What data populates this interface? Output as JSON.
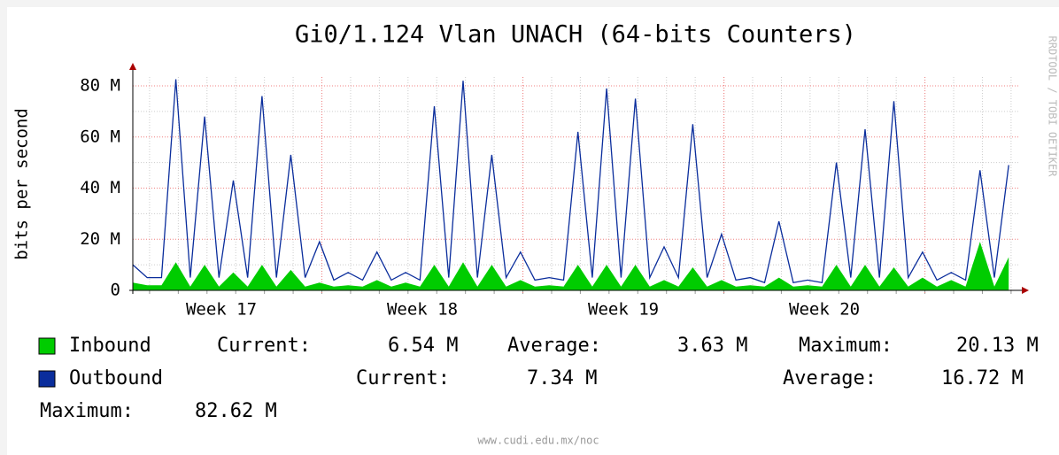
{
  "chart_data": {
    "type": "area-line",
    "title": "Gi0/1.124 Vlan UNACH (64-bits Counters)",
    "y_label": "bits per second",
    "side_label": "RRDTOOL / TOBI OETIKER",
    "footer": "www.cudi.edu.mx/noc",
    "xlim": [
      0,
      740
    ],
    "xticks": [
      {
        "value": 74,
        "label": "Week 17"
      },
      {
        "value": 242,
        "label": "Week 18"
      },
      {
        "value": 410,
        "label": "Week 19"
      },
      {
        "value": 578,
        "label": "Week 20"
      }
    ],
    "ylim": [
      0,
      80
    ],
    "yticks": [
      {
        "value": 0,
        "label": "0"
      },
      {
        "value": 20,
        "label": "20 M"
      },
      {
        "value": 40,
        "label": "40 M"
      },
      {
        "value": 60,
        "label": "60 M"
      },
      {
        "value": 80,
        "label": "80 M"
      }
    ],
    "grid": true,
    "x": [
      0,
      12,
      24,
      36,
      48,
      60,
      72,
      84,
      96,
      108,
      120,
      132,
      144,
      156,
      168,
      180,
      192,
      204,
      216,
      228,
      240,
      252,
      264,
      276,
      288,
      300,
      312,
      324,
      336,
      348,
      360,
      372,
      384,
      396,
      408,
      420,
      432,
      444,
      456,
      468,
      480,
      492,
      504,
      516,
      528,
      540,
      552,
      564,
      576,
      588,
      600,
      612,
      624,
      636,
      648,
      660,
      672,
      684,
      696,
      708,
      720,
      732
    ],
    "series": [
      {
        "name": "Inbound",
        "color": "#00cc00",
        "style": "area",
        "values": [
          3,
          2,
          2,
          11,
          1.5,
          10,
          1.5,
          7,
          1.5,
          10,
          1.5,
          8,
          1.5,
          3,
          1.5,
          2,
          1.5,
          4,
          1.5,
          3,
          1.5,
          10,
          1.5,
          11,
          1.5,
          10,
          1.5,
          4,
          1.5,
          2,
          1.5,
          10,
          1.5,
          10,
          1.5,
          10,
          1.5,
          4,
          1.5,
          9,
          1.5,
          4,
          1.5,
          2,
          1.5,
          5,
          1.5,
          2,
          1.5,
          10,
          1.5,
          10,
          1.5,
          9,
          1.5,
          5,
          1.5,
          4,
          1.5,
          19,
          1.5,
          13
        ],
        "stats": [
          {
            "label": "Current:",
            "value": "6.54 M"
          },
          {
            "label": "Average:",
            "value": "3.63 M"
          },
          {
            "label": "Maximum:",
            "value": "20.13 M"
          }
        ]
      },
      {
        "name": "Outbound",
        "color": "#0a2d9c",
        "style": "line",
        "values": [
          10,
          5,
          5,
          82.6,
          5,
          68,
          5,
          43,
          5,
          76,
          5,
          53,
          5,
          19,
          4,
          7,
          4,
          15,
          4,
          7,
          4,
          72,
          5,
          82,
          5,
          53,
          5,
          15,
          4,
          5,
          4,
          62,
          5,
          79,
          5,
          75,
          5,
          17,
          5,
          65,
          5,
          22,
          4,
          5,
          3,
          27,
          3,
          4,
          3,
          50,
          5,
          63,
          5,
          74,
          5,
          15,
          4,
          7,
          4,
          47,
          5,
          49
        ],
        "stats": [
          {
            "label": "Current:",
            "value": "7.34 M"
          },
          {
            "label": "Average:",
            "value": "16.72 M"
          },
          {
            "label": "Maximum:",
            "value": "82.62 M"
          }
        ]
      }
    ]
  }
}
